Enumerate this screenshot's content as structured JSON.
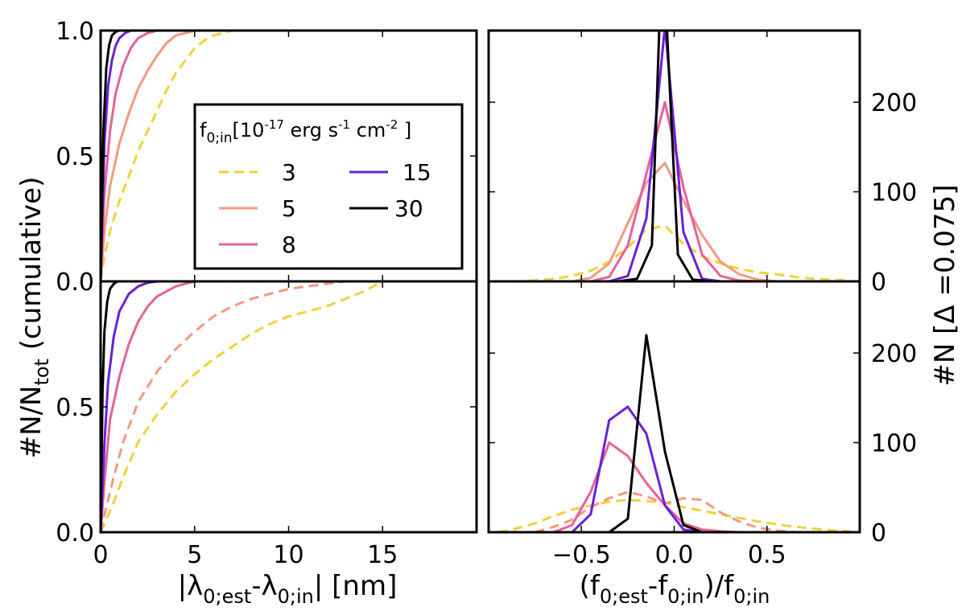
{
  "chart_data": [
    {
      "id": "panel-top-left",
      "type": "line",
      "description": "cumulative fraction vs |lambda error|, upper",
      "xlim": [
        0,
        20
      ],
      "ylim": [
        0,
        1
      ],
      "xticks": [],
      "yticks": [
        0.0,
        0.5,
        1.0
      ],
      "ytick_labels": [
        "0.0",
        "0.5",
        "1.0"
      ],
      "series": [
        {
          "name": "3",
          "color": "#f2d13a",
          "dash": true,
          "x": [
            0,
            0.2,
            0.5,
            1,
            1.5,
            2,
            2.5,
            3,
            3.5,
            4,
            4.5,
            5,
            5.5,
            6,
            7
          ],
          "y": [
            0,
            0.1,
            0.2,
            0.32,
            0.42,
            0.52,
            0.6,
            0.68,
            0.76,
            0.83,
            0.88,
            0.93,
            0.96,
            0.98,
            1.0
          ]
        },
        {
          "name": "5",
          "color": "#f29a7e",
          "dash": false,
          "x": [
            0,
            0.2,
            0.5,
            1,
            1.5,
            2,
            2.5,
            3,
            3.5,
            4,
            5,
            6
          ],
          "y": [
            0,
            0.2,
            0.38,
            0.55,
            0.67,
            0.77,
            0.84,
            0.9,
            0.95,
            0.98,
            1.0,
            1.0
          ]
        },
        {
          "name": "8",
          "color": "#e8609a",
          "dash": false,
          "x": [
            0,
            0.2,
            0.5,
            0.8,
            1.2,
            1.6,
            2,
            2.5,
            3,
            4
          ],
          "y": [
            0,
            0.35,
            0.6,
            0.75,
            0.86,
            0.93,
            0.97,
            0.99,
            1.0,
            1.0
          ]
        },
        {
          "name": "15",
          "color": "#6a1fd8",
          "dash": false,
          "x": [
            0,
            0.2,
            0.4,
            0.6,
            0.8,
            1,
            1.3,
            1.6,
            2
          ],
          "y": [
            0,
            0.55,
            0.78,
            0.88,
            0.94,
            0.97,
            0.99,
            1.0,
            1.0
          ]
        },
        {
          "name": "30",
          "color": "#000000",
          "dash": false,
          "x": [
            0,
            0.15,
            0.3,
            0.45,
            0.6,
            0.8,
            1,
            1.3
          ],
          "y": [
            0,
            0.6,
            0.85,
            0.94,
            0.98,
            0.995,
            1.0,
            1.0
          ]
        }
      ]
    },
    {
      "id": "panel-top-right",
      "type": "line",
      "description": "histogram of relative flux error, upper",
      "xlim": [
        -1,
        1
      ],
      "ylim": [
        0,
        280
      ],
      "xticks": [],
      "yticks": [
        0,
        100,
        200
      ],
      "ytick_labels": [
        "0",
        "100",
        "200"
      ],
      "series": [
        {
          "name": "3",
          "color": "#f2d13a",
          "dash": true,
          "x": [
            -0.95,
            -0.85,
            -0.75,
            -0.65,
            -0.55,
            -0.45,
            -0.35,
            -0.25,
            -0.15,
            -0.05,
            0.05,
            0.15,
            0.25,
            0.35,
            0.45,
            0.55,
            0.65,
            0.75,
            0.85,
            0.95
          ],
          "y": [
            0,
            0,
            1,
            3,
            6,
            12,
            22,
            38,
            58,
            62,
            42,
            28,
            20,
            14,
            10,
            8,
            5,
            3,
            2,
            1
          ]
        },
        {
          "name": "5",
          "color": "#f29a7e",
          "dash": false,
          "x": [
            -0.55,
            -0.45,
            -0.35,
            -0.25,
            -0.15,
            -0.05,
            0.05,
            0.15,
            0.25,
            0.35,
            0.45,
            0.55
          ],
          "y": [
            0,
            4,
            20,
            65,
            110,
            132,
            90,
            52,
            22,
            8,
            2,
            0
          ]
        },
        {
          "name": "8",
          "color": "#e8609a",
          "dash": false,
          "x": [
            -0.45,
            -0.35,
            -0.25,
            -0.15,
            -0.05,
            0.05,
            0.15,
            0.25,
            0.35,
            0.45
          ],
          "y": [
            0,
            5,
            40,
            120,
            200,
            105,
            30,
            6,
            1,
            0
          ]
        },
        {
          "name": "15",
          "color": "#6a1fd8",
          "dash": false,
          "x": [
            -0.35,
            -0.25,
            -0.15,
            -0.05,
            0.05,
            0.15,
            0.25
          ],
          "y": [
            0,
            6,
            70,
            285,
            55,
            3,
            0
          ]
        },
        {
          "name": "30",
          "color": "#000000",
          "dash": false,
          "x": [
            -0.3,
            -0.2,
            -0.12,
            -0.08,
            -0.04,
            0.02,
            0.1,
            0.2
          ],
          "y": [
            0,
            3,
            40,
            285,
            285,
            30,
            2,
            0
          ]
        }
      ]
    },
    {
      "id": "panel-bottom-left",
      "type": "line",
      "description": "cumulative fraction vs |lambda error|, lower",
      "xlim": [
        0,
        20
      ],
      "ylim": [
        0,
        1
      ],
      "xticks": [
        0,
        5,
        10,
        15
      ],
      "yticks": [
        0.0,
        0.5
      ],
      "xtick_labels": [
        "0",
        "5",
        "10",
        "15"
      ],
      "ytick_labels": [
        "0.0",
        "0.5"
      ],
      "series": [
        {
          "name": "3",
          "color": "#f2d13a",
          "dash": true,
          "x": [
            0,
            0.3,
            0.7,
            1.2,
            2,
            3,
            4,
            5,
            6,
            7,
            8,
            9,
            10,
            11,
            12,
            13,
            14,
            15,
            16
          ],
          "y": [
            0,
            0.05,
            0.12,
            0.22,
            0.36,
            0.47,
            0.56,
            0.63,
            0.69,
            0.74,
            0.79,
            0.83,
            0.86,
            0.88,
            0.9,
            0.93,
            0.96,
            1.0,
            1.0
          ]
        },
        {
          "name": "5",
          "color": "#f29a7e",
          "dash": true,
          "x": [
            0,
            0.3,
            0.7,
            1.2,
            2,
            3,
            4,
            5,
            6,
            7,
            8,
            9,
            10,
            11,
            12,
            13,
            14
          ],
          "y": [
            0,
            0.1,
            0.22,
            0.36,
            0.52,
            0.64,
            0.73,
            0.8,
            0.86,
            0.9,
            0.93,
            0.95,
            0.97,
            0.98,
            0.99,
            1.0,
            1.0
          ]
        },
        {
          "name": "8",
          "color": "#e8609a",
          "dash": false,
          "x": [
            0,
            0.2,
            0.5,
            1,
            1.5,
            2,
            2.5,
            3,
            4,
            5,
            6
          ],
          "y": [
            0,
            0.2,
            0.45,
            0.62,
            0.75,
            0.84,
            0.9,
            0.94,
            0.98,
            1.0,
            1.0
          ]
        },
        {
          "name": "15",
          "color": "#6a1fd8",
          "dash": false,
          "x": [
            0,
            0.2,
            0.4,
            0.7,
            1,
            1.5,
            2,
            2.5,
            3,
            3.5
          ],
          "y": [
            0,
            0.35,
            0.6,
            0.78,
            0.88,
            0.95,
            0.98,
            0.995,
            1.0,
            1.0
          ]
        },
        {
          "name": "30",
          "color": "#000000",
          "dash": false,
          "x": [
            0,
            0.1,
            0.2,
            0.35,
            0.5,
            0.7,
            0.9,
            1.2
          ],
          "y": [
            0,
            0.55,
            0.8,
            0.92,
            0.97,
            0.99,
            1.0,
            1.0
          ]
        }
      ]
    },
    {
      "id": "panel-bottom-right",
      "type": "line",
      "description": "histogram of relative flux error, lower",
      "xlim": [
        -1,
        1
      ],
      "ylim": [
        0,
        280
      ],
      "xticks": [
        -0.5,
        0.0,
        0.5
      ],
      "yticks": [
        0,
        100,
        200
      ],
      "xtick_labels": [
        "−0.5",
        "0.0",
        "0.5"
      ],
      "ytick_labels": [
        "0",
        "100",
        "200"
      ],
      "series": [
        {
          "name": "3",
          "color": "#f2d13a",
          "dash": true,
          "x": [
            -0.95,
            -0.85,
            -0.75,
            -0.65,
            -0.55,
            -0.45,
            -0.35,
            -0.25,
            -0.15,
            -0.05,
            0.05,
            0.15,
            0.25,
            0.35,
            0.45,
            0.55,
            0.65,
            0.75,
            0.85,
            0.95
          ],
          "y": [
            0,
            4,
            10,
            18,
            25,
            30,
            34,
            36,
            35,
            33,
            28,
            24,
            20,
            16,
            12,
            9,
            6,
            4,
            2,
            1
          ]
        },
        {
          "name": "5",
          "color": "#f29a7e",
          "dash": true,
          "x": [
            -0.75,
            -0.65,
            -0.55,
            -0.45,
            -0.35,
            -0.25,
            -0.15,
            -0.05,
            0.05,
            0.15,
            0.25,
            0.35,
            0.45,
            0.55,
            0.65
          ],
          "y": [
            0,
            6,
            14,
            28,
            38,
            45,
            40,
            32,
            38,
            36,
            22,
            12,
            5,
            2,
            0
          ]
        },
        {
          "name": "8",
          "color": "#e8609a",
          "dash": false,
          "x": [
            -0.65,
            -0.55,
            -0.45,
            -0.35,
            -0.25,
            -0.15,
            -0.05,
            0.05,
            0.15,
            0.25,
            0.35,
            0.45
          ],
          "y": [
            0,
            8,
            45,
            100,
            85,
            55,
            30,
            10,
            3,
            1,
            0,
            0
          ]
        },
        {
          "name": "15",
          "color": "#6a1fd8",
          "dash": false,
          "x": [
            -0.55,
            -0.45,
            -0.35,
            -0.25,
            -0.15,
            -0.05,
            0.05,
            0.15
          ],
          "y": [
            0,
            20,
            125,
            140,
            110,
            30,
            3,
            0
          ]
        },
        {
          "name": "30",
          "color": "#000000",
          "dash": false,
          "x": [
            -0.35,
            -0.25,
            -0.15,
            -0.05,
            0.05,
            0.15
          ],
          "y": [
            0,
            15,
            220,
            90,
            8,
            0
          ]
        }
      ]
    }
  ],
  "legend": {
    "title": "f0;in[10-17 erg s-1 cm-2 ]",
    "title_parts": {
      "f": "f",
      "sub": "0;in",
      "unit1": "[10",
      "exp1": "-17",
      "unit2": " erg s",
      "exp2": "-1",
      "unit3": " cm",
      "exp3": "-2",
      "unit4": " ]"
    },
    "entries": [
      {
        "label": "3",
        "color": "#f2d13a",
        "dash": true
      },
      {
        "label": "15",
        "color": "#6a1fd8",
        "dash": false
      },
      {
        "label": "5",
        "color": "#f29a7e",
        "dash": false
      },
      {
        "label": "30",
        "color": "#000000",
        "dash": false
      },
      {
        "label": "8",
        "color": "#e8609a",
        "dash": false
      }
    ]
  },
  "axes": {
    "left_ylabel": {
      "base": "#N/N",
      "sub": "tot",
      "rest": " (cumulative)"
    },
    "right_ylabel": {
      "text": "#N [Δ =0.075]"
    },
    "left_xlabel": {
      "a": "|λ",
      "sub1": "0;est",
      "b": "-λ",
      "sub2": "0;in",
      "c": "| [nm]"
    },
    "right_xlabel": {
      "a": "(f",
      "sub1": "0;est",
      "b": "-f",
      "sub2": "0;in",
      "c": ")/f",
      "sub3": "0;in"
    }
  }
}
